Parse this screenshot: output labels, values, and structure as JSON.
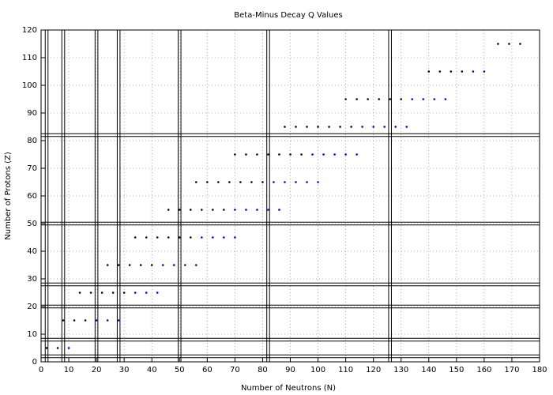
{
  "chart_data": {
    "type": "scatter",
    "title": "Beta-Minus Decay Q Values",
    "x_label": "Number of Neutrons (N)",
    "y_label": "Number of Protons (Z)",
    "xlim": [
      0,
      180
    ],
    "ylim": [
      0,
      120
    ],
    "xticks": [
      0,
      10,
      20,
      30,
      40,
      50,
      60,
      70,
      80,
      90,
      100,
      110,
      120,
      130,
      140,
      150,
      160,
      170,
      180
    ],
    "yticks": [
      0,
      10,
      20,
      30,
      40,
      50,
      60,
      70,
      80,
      90,
      100,
      110,
      120
    ],
    "grid": true,
    "magic_numbers": [
      2,
      8,
      20,
      28,
      50,
      82,
      126
    ],
    "series": [
      {
        "color": "#000000",
        "x": [
          2,
          6,
          8,
          12,
          16,
          14,
          18,
          22,
          26,
          30,
          24,
          28,
          32,
          36,
          40,
          34,
          38,
          42,
          46,
          50,
          54,
          46,
          50,
          54,
          58,
          62,
          66,
          56,
          60,
          64,
          68,
          72,
          76,
          80,
          70,
          74,
          78,
          82,
          86,
          90,
          94,
          88,
          92,
          96,
          100,
          104,
          108,
          112,
          110,
          114,
          118,
          122,
          126,
          130,
          140,
          144,
          148,
          152,
          165,
          169,
          173
        ],
        "values": [
          5,
          5,
          15,
          15,
          15,
          25,
          25,
          25,
          25,
          25,
          35,
          35,
          35,
          35,
          35,
          45,
          45,
          45,
          45,
          45,
          45,
          55,
          55,
          55,
          55,
          55,
          55,
          65,
          65,
          65,
          65,
          65,
          65,
          65,
          75,
          75,
          75,
          75,
          75,
          75,
          75,
          85,
          85,
          85,
          85,
          85,
          85,
          85,
          95,
          95,
          95,
          95,
          95,
          95,
          105,
          105,
          105,
          105,
          115,
          115,
          115
        ]
      },
      {
        "color": "#0000cc",
        "x": [
          10,
          20,
          24,
          28,
          34,
          38,
          42,
          44,
          48,
          52,
          56,
          58,
          62,
          66,
          70,
          70,
          74,
          78,
          82,
          86,
          84,
          88,
          92,
          96,
          100,
          98,
          102,
          106,
          110,
          114,
          116,
          120,
          124,
          128,
          132,
          134,
          138,
          142,
          146,
          156,
          160
        ],
        "values": [
          5,
          15,
          15,
          15,
          25,
          25,
          25,
          35,
          35,
          35,
          35,
          45,
          45,
          45,
          45,
          55,
          55,
          55,
          55,
          55,
          65,
          65,
          65,
          65,
          65,
          75,
          75,
          75,
          75,
          75,
          85,
          85,
          85,
          85,
          85,
          95,
          95,
          95,
          95,
          105,
          105
        ]
      }
    ]
  }
}
